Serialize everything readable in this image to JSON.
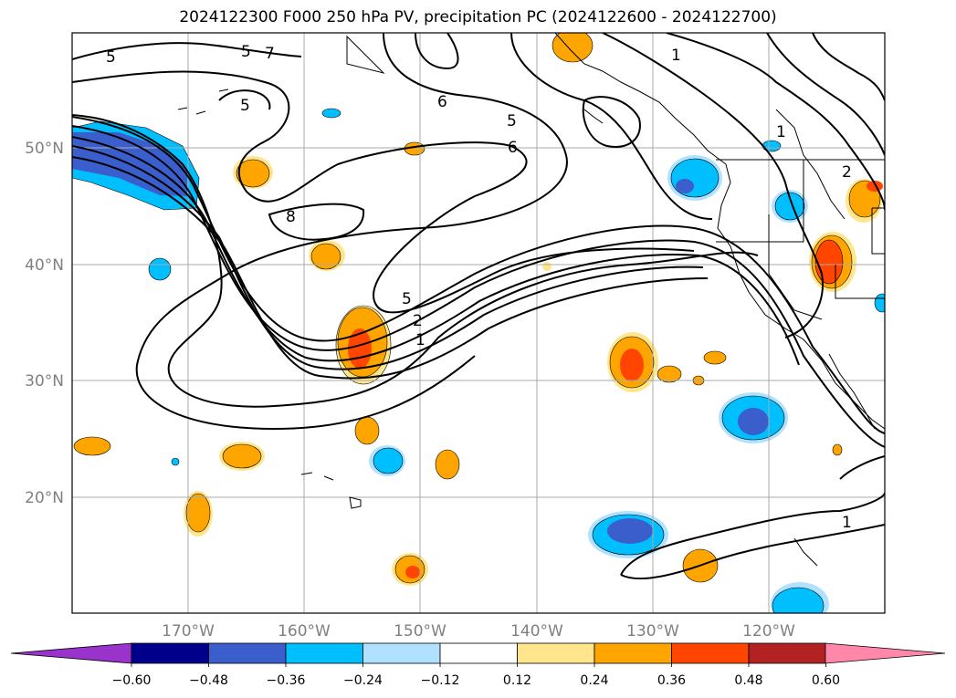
{
  "title": "2024122300 F000 250 hPa PV, precipitation PC (2024122600 - 2024122700)",
  "map": {
    "lon_labels": [
      "170°W",
      "160°W",
      "150°W",
      "140°W",
      "130°W",
      "120°W"
    ],
    "lat_labels": [
      "50°N",
      "40°N",
      "30°N",
      "20°N"
    ],
    "contour_labels": [
      "5",
      "5",
      "7",
      "6",
      "5",
      "6",
      "8",
      "5",
      "2",
      "1",
      "1",
      "1",
      "2",
      "1",
      "5"
    ]
  },
  "colorbar": {
    "ticks": [
      "−0.60",
      "−0.48",
      "−0.36",
      "−0.24",
      "−0.12",
      "0.12",
      "0.24",
      "0.36",
      "0.48",
      "0.60"
    ],
    "colors": [
      "#9933cc",
      "#00008b",
      "#3a5fcd",
      "#00bfff",
      "#b0e2ff",
      "#ffffff",
      "#ffe68c",
      "#ffa500",
      "#ff4500",
      "#b22222",
      "#ff88aa"
    ]
  },
  "colors": {
    "contour": "#000000",
    "grid": "#aaaaaa",
    "positive_low": "#ffe68c",
    "positive_mid": "#ffa500",
    "positive_high": "#ff4500",
    "negative_low": "#b0e2ff",
    "negative_mid": "#00bfff",
    "negative_high": "#3a5fcd"
  }
}
